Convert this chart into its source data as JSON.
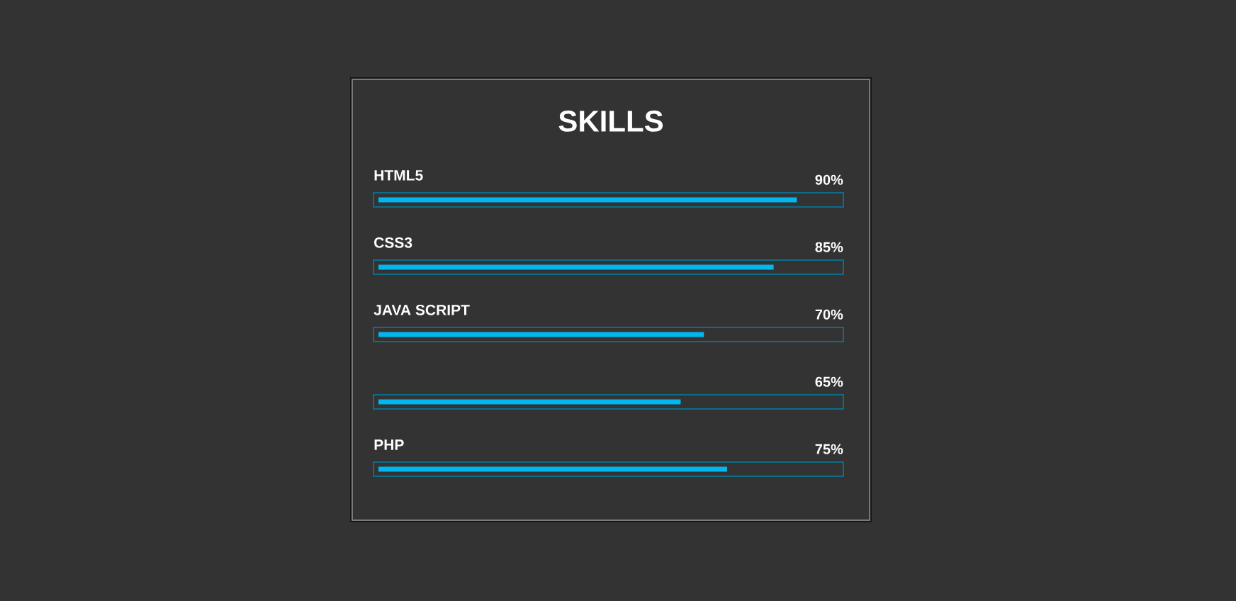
{
  "chart_data": {
    "type": "bar",
    "orientation": "horizontal",
    "title": "SKILLS",
    "categories": [
      "HTML5",
      "CSS3",
      "JAVA SCRIPT",
      null,
      "PHP"
    ],
    "values": [
      90,
      85,
      70,
      65,
      75
    ],
    "value_labels": [
      "90%",
      "85%",
      "70%",
      "65%",
      "75%"
    ],
    "color": "#00b7f0",
    "xlim": [
      0,
      100
    ]
  }
}
